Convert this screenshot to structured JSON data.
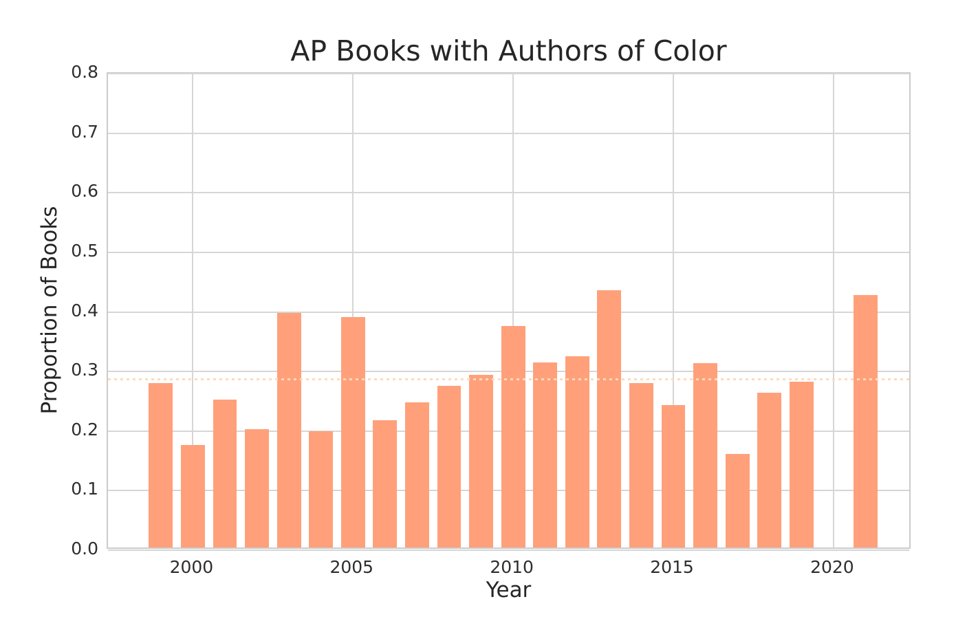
{
  "chart_data": {
    "type": "bar",
    "title": "AP Books with Authors of Color",
    "xlabel": "Year",
    "ylabel": "Proportion of Books",
    "x": [
      1999,
      2000,
      2001,
      2002,
      2003,
      2004,
      2005,
      2006,
      2007,
      2008,
      2009,
      2010,
      2011,
      2012,
      2013,
      2014,
      2015,
      2016,
      2017,
      2018,
      2019,
      2021
    ],
    "values": [
      0.276,
      0.172,
      0.248,
      0.199,
      0.394,
      0.195,
      0.387,
      0.214,
      0.244,
      0.271,
      0.29,
      0.372,
      0.31,
      0.321,
      0.432,
      0.276,
      0.239,
      0.309,
      0.157,
      0.26,
      0.278,
      0.424
    ],
    "mean_line": {
      "value": 0.287,
      "style": "dotted"
    },
    "xticks": [
      "2000",
      "2005",
      "2010",
      "2015",
      "2020"
    ],
    "xtick_positions": [
      2000,
      2005,
      2010,
      2015,
      2020
    ],
    "yticks": [
      "0.0",
      "0.1",
      "0.2",
      "0.3",
      "0.4",
      "0.5",
      "0.6",
      "0.7",
      "0.8"
    ],
    "ytick_values": [
      0.0,
      0.1,
      0.2,
      0.3,
      0.4,
      0.5,
      0.6,
      0.7,
      0.8
    ],
    "xlim": [
      1997.35,
      2022.45
    ],
    "ylim": [
      0.0,
      0.8
    ],
    "bar_width_years": 0.75,
    "grid": true,
    "legend_position": "none",
    "colors": {
      "bar": "#FFA07A",
      "mean_line": "#FBDCBD",
      "grid": "#D6D6D6",
      "spine": "#CCCCCC",
      "title_text": "#262626",
      "tick_text": "#2E2E2E"
    }
  }
}
